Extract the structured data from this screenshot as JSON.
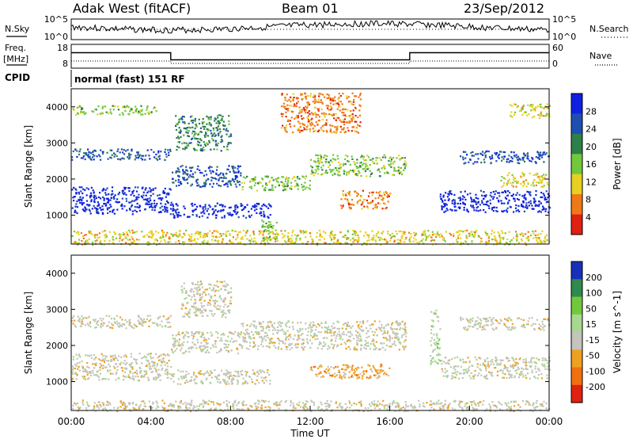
{
  "header": {
    "station": "Adak West (fitACF)",
    "beam": "Beam 01",
    "date": "23/Sep/2012"
  },
  "side_labels": {
    "nsky": "N.Sky",
    "nsearch": "N.Search",
    "freq": "Freq.",
    "freq_unit": "[MHz]",
    "nave": "Nave",
    "cpid": "CPID",
    "cpid_value": "normal (fast) 151 RF"
  },
  "chart_data": [
    {
      "type": "line",
      "panel": "noise",
      "left_ticks": [
        "10^5",
        "10^0"
      ],
      "right_ticks": [
        "10^5",
        "10^0"
      ],
      "series": [
        {
          "name": "N.Sky"
        },
        {
          "name": "N.Search"
        }
      ]
    },
    {
      "type": "line",
      "panel": "frequency",
      "left_ticks": [
        "18",
        "8"
      ],
      "right_ticks": [
        "60",
        "0"
      ],
      "series": [
        {
          "name": "Freq.",
          "x": [
            0,
            5,
            5,
            17,
            17,
            24
          ],
          "values": [
            14.5,
            14.5,
            11.5,
            11.5,
            14.5,
            14.5
          ]
        },
        {
          "name": "Nave",
          "x": [
            0,
            5,
            5,
            17,
            17,
            24
          ],
          "values": [
            18,
            18,
            12,
            12,
            18,
            18
          ]
        }
      ]
    },
    {
      "type": "heatmap",
      "panel": "power",
      "title": "",
      "xlabel": "",
      "ylabel": "Slant Range [km]",
      "xlim": [
        0,
        24
      ],
      "ylim": [
        200,
        4500
      ],
      "y_ticks": [
        "1000",
        "2000",
        "3000",
        "4000"
      ],
      "colorbar_label": "Power [dB]",
      "colorbar_ticks": [
        "28",
        "24",
        "20",
        "16",
        "12",
        "8",
        "4"
      ],
      "colorbar_range": [
        0,
        30
      ],
      "colors": [
        "#1020e0",
        "#1e4fb0",
        "#2e7f4a",
        "#72c83c",
        "#e8d020",
        "#f07818",
        "#e02010"
      ],
      "bands": [
        {
          "x": [
            0,
            5
          ],
          "y": [
            1050,
            1800
          ],
          "level": 27
        },
        {
          "x": [
            0,
            5
          ],
          "y": [
            2550,
            2850
          ],
          "level": 24
        },
        {
          "x": [
            0,
            4.3
          ],
          "y": [
            3800,
            4050
          ],
          "level": 14
        },
        {
          "x": [
            5,
            10
          ],
          "y": [
            950,
            1350
          ],
          "level": 26
        },
        {
          "x": [
            5,
            8.5
          ],
          "y": [
            1800,
            2400
          ],
          "level": 22
        },
        {
          "x": [
            5.2,
            8
          ],
          "y": [
            2800,
            3800
          ],
          "level": 20
        },
        {
          "x": [
            8.5,
            12
          ],
          "y": [
            1700,
            2100
          ],
          "level": 16
        },
        {
          "x": [
            12,
            16.8
          ],
          "y": [
            2100,
            2700
          ],
          "level": 14
        },
        {
          "x": [
            10.5,
            14.5
          ],
          "y": [
            3300,
            4400
          ],
          "level": 7
        },
        {
          "x": [
            13.5,
            16
          ],
          "y": [
            1200,
            1700
          ],
          "level": 6
        },
        {
          "x": [
            9.5,
            10.3
          ],
          "y": [
            300,
            900
          ],
          "level": 13
        },
        {
          "x": [
            18.5,
            24
          ],
          "y": [
            1100,
            1700
          ],
          "level": 27
        },
        {
          "x": [
            19.5,
            24
          ],
          "y": [
            2450,
            2800
          ],
          "level": 24
        },
        {
          "x": [
            21.5,
            24
          ],
          "y": [
            1800,
            2200
          ],
          "level": 12
        },
        {
          "x": [
            22,
            24
          ],
          "y": [
            3700,
            4100
          ],
          "level": 12
        },
        {
          "x": [
            0,
            24
          ],
          "y": [
            200,
            600
          ],
          "level": 12
        }
      ]
    },
    {
      "type": "heatmap",
      "panel": "velocity",
      "title": "",
      "xlabel": "Time UT",
      "ylabel": "Slant Range [km]",
      "xlim": [
        0,
        24
      ],
      "ylim": [
        200,
        4500
      ],
      "x_ticks": [
        "00:00",
        "04:00",
        "08:00",
        "12:00",
        "16:00",
        "20:00",
        "00:00"
      ],
      "y_ticks": [
        "1000",
        "2000",
        "3000",
        "4000"
      ],
      "colorbar_label": "Velocity [m s^-1]",
      "colorbar_ticks": [
        "200",
        "100",
        "50",
        "15",
        "-15",
        "-50",
        "-100",
        "-200"
      ],
      "colorbar_range": [
        -250,
        250
      ],
      "colors": [
        "#1a2fb8",
        "#2e8a4e",
        "#72c83c",
        "#a8d890",
        "#c4c4bc",
        "#f0a020",
        "#f07010",
        "#e02010"
      ],
      "bands": [
        {
          "x": [
            0,
            5
          ],
          "y": [
            1050,
            1800
          ],
          "level": 0
        },
        {
          "x": [
            0,
            5
          ],
          "y": [
            2500,
            2850
          ],
          "level": 0
        },
        {
          "x": [
            5,
            10
          ],
          "y": [
            950,
            1350
          ],
          "level": 0
        },
        {
          "x": [
            5,
            8.5
          ],
          "y": [
            1800,
            2400
          ],
          "level": -60
        },
        {
          "x": [
            5.5,
            8
          ],
          "y": [
            2800,
            3800
          ],
          "level": -60
        },
        {
          "x": [
            8.5,
            16.8
          ],
          "y": [
            1900,
            2700
          ],
          "level": 0
        },
        {
          "x": [
            12,
            16
          ],
          "y": [
            1100,
            1500
          ],
          "level": -80
        },
        {
          "x": [
            18,
            18.5
          ],
          "y": [
            1500,
            3000
          ],
          "level": 60
        },
        {
          "x": [
            18.5,
            24
          ],
          "y": [
            1100,
            1700
          ],
          "level": 0
        },
        {
          "x": [
            19.5,
            24
          ],
          "y": [
            2450,
            2800
          ],
          "level": 0
        },
        {
          "x": [
            0,
            24
          ],
          "y": [
            200,
            500
          ],
          "level": -60
        }
      ]
    }
  ]
}
